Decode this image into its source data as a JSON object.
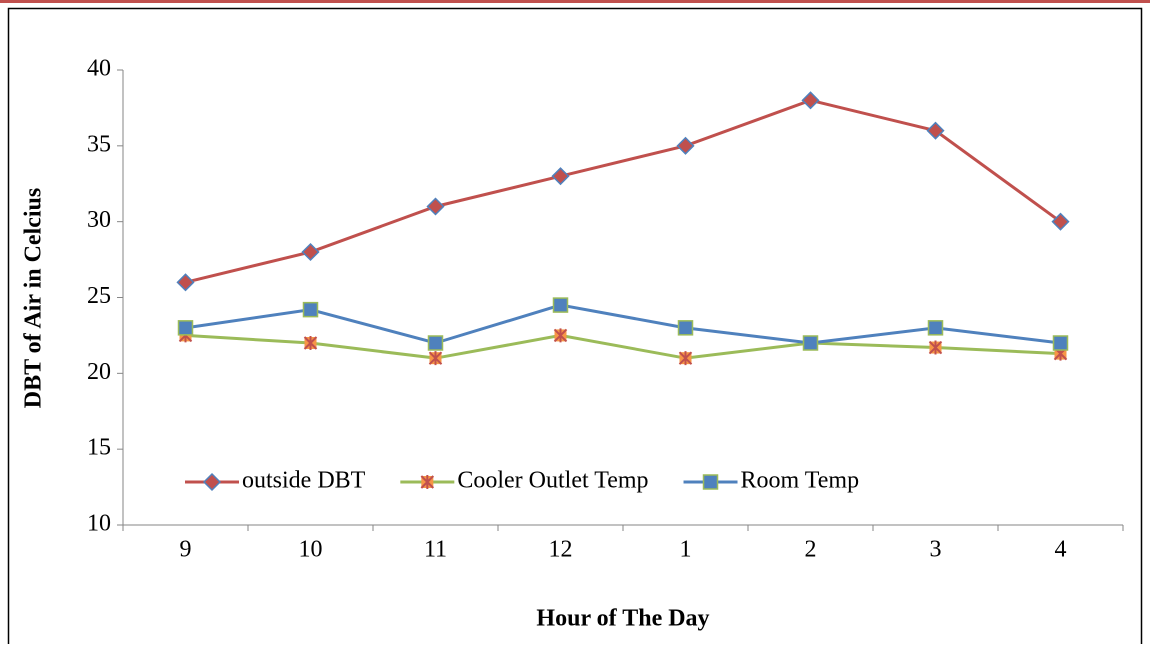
{
  "chart_data": {
    "type": "line",
    "x_label": "Hour of The Day",
    "y_label": "DBT of Air in Celcius",
    "categories": [
      "9",
      "10",
      "11",
      "12",
      "1",
      "2",
      "3",
      "4"
    ],
    "series": [
      {
        "name": "outside DBT",
        "color": "#c0504d",
        "marker": "diamond",
        "marker_fill": "#c0504d",
        "marker_stroke": "#4f81bd",
        "values": [
          26,
          28,
          31,
          33,
          35,
          38,
          36,
          30
        ]
      },
      {
        "name": "Cooler Outlet Temp",
        "color": "#9bbb59",
        "marker": "star",
        "marker_fill": "#c0504d",
        "marker_stroke": "#9bbb59",
        "values": [
          22.5,
          22,
          21,
          22.5,
          21,
          22,
          21.7,
          21.3
        ]
      },
      {
        "name": "Room Temp",
        "color": "#4f81bd",
        "marker": "square",
        "marker_fill": "#4f81bd",
        "marker_stroke": "#9bbb59",
        "values": [
          23,
          24.2,
          22,
          24.5,
          23,
          22,
          23,
          22
        ]
      }
    ],
    "ylim": [
      10,
      40
    ],
    "yticks": [
      10,
      15,
      20,
      25,
      30,
      35,
      40
    ],
    "grid": false,
    "legend": "lower left"
  }
}
